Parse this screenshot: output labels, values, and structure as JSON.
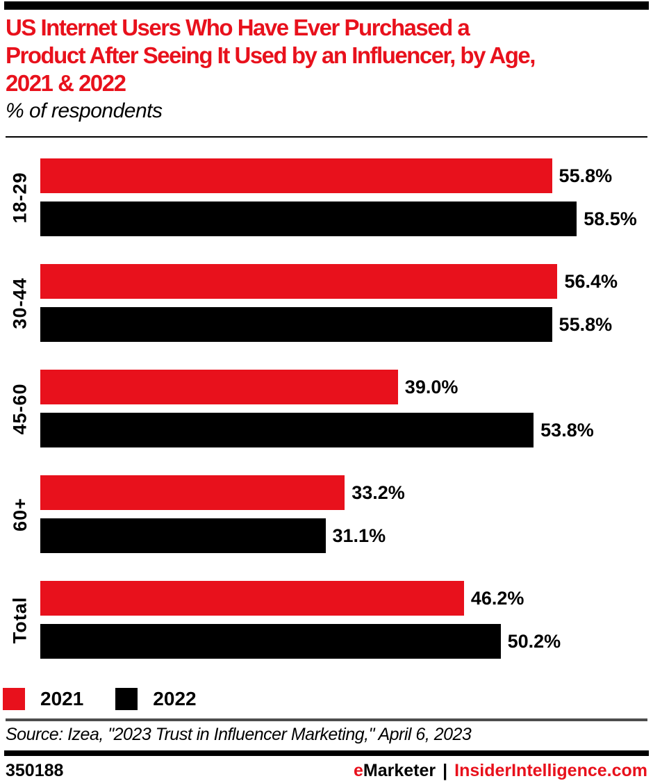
{
  "header": {
    "title_lines": [
      "US Internet Users Who Have Ever Purchased a",
      "Product After Seeing It Used by an Influencer, by Age,",
      "2021 & 2022"
    ],
    "subtitle": "% of respondents"
  },
  "chart_data": {
    "type": "bar",
    "orientation": "horizontal",
    "title": "US Internet Users Who Have Ever Purchased a Product After Seeing It Used by an Influencer, by Age, 2021 & 2022",
    "subtitle": "% of respondents",
    "categories": [
      "18-29",
      "30-44",
      "45-60",
      "60+",
      "Total"
    ],
    "series": [
      {
        "name": "2021",
        "color": "#e8111c",
        "values": [
          55.8,
          56.4,
          39.0,
          33.2,
          46.2
        ],
        "labels": [
          "55.8%",
          "56.4%",
          "39.0%",
          "33.2%",
          "46.2%"
        ]
      },
      {
        "name": "2022",
        "color": "#000000",
        "values": [
          58.5,
          55.8,
          53.8,
          31.1,
          50.2
        ],
        "labels": [
          "58.5%",
          "55.8%",
          "53.8%",
          "31.1%",
          "50.2%"
        ]
      }
    ],
    "xlim": [
      0,
      66
    ],
    "grid": false,
    "legend_position": "bottom",
    "value_labels_shown": true
  },
  "legend": {
    "items": [
      {
        "label": "2021",
        "color": "#e8111c"
      },
      {
        "label": "2022",
        "color": "#000000"
      }
    ]
  },
  "source_line": "Source: Izea, \"2023 Trust in Influencer Marketing,\" April 6, 2023",
  "footer": {
    "chart_id": "350188",
    "brand_first_letter": "e",
    "brand_rest": "Marketer",
    "separator": "|",
    "site": "InsiderIntelligence.com"
  },
  "colors": {
    "accent_red": "#e8111c",
    "bar_black": "#000000",
    "rule_gray": "#4d4d4d"
  }
}
